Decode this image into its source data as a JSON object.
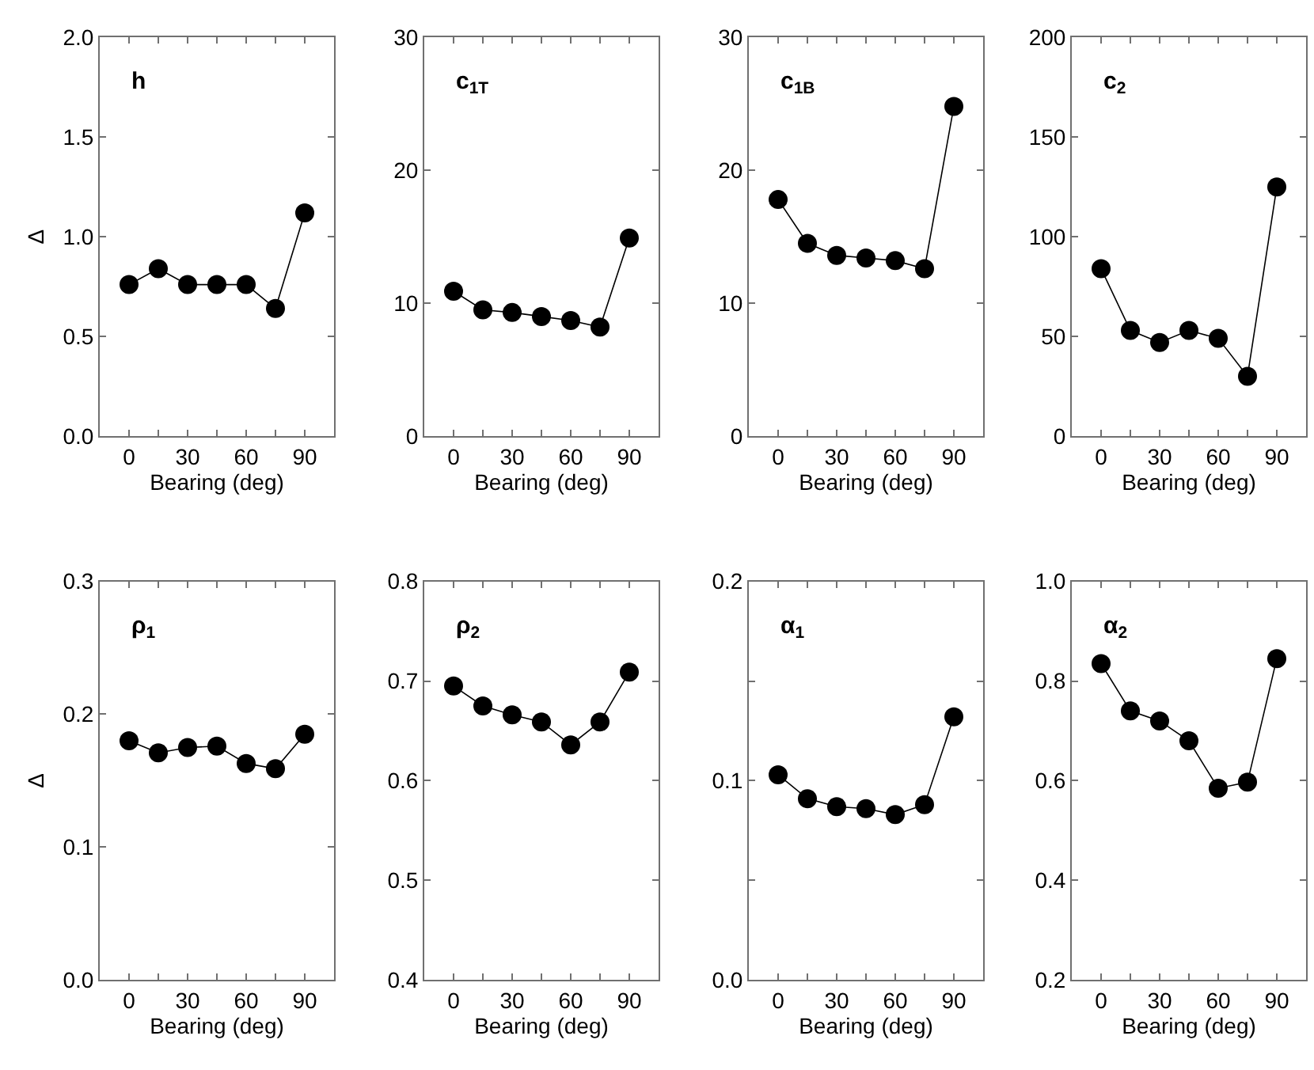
{
  "chart_data": [
    {
      "type": "line",
      "title": "h",
      "ylabel": "Δ",
      "xlabel": "Bearing (deg)",
      "x": [
        0,
        15,
        30,
        45,
        60,
        75,
        90
      ],
      "marker": "circle",
      "series": [
        {
          "color": "#000000",
          "values": [
            0.76,
            0.84,
            0.76,
            0.76,
            0.76,
            0.64,
            1.12
          ]
        }
      ],
      "xlim": [
        -15,
        105
      ],
      "xticks": [
        0,
        {
          "value": 15,
          "label": null
        },
        30,
        {
          "value": 45,
          "label": null
        },
        60,
        {
          "value": 75,
          "label": null
        },
        90
      ],
      "ylim": [
        0,
        2
      ],
      "yticks": [
        {
          "value": 0,
          "label": "0.0"
        },
        0.5,
        {
          "value": 1,
          "label": "1.0"
        },
        1.5,
        {
          "value": 2,
          "label": "2.0"
        }
      ]
    },
    {
      "type": "line",
      "title": "c$_{1T}$",
      "xlabel": "Bearing (deg)",
      "x": [
        0,
        15,
        30,
        45,
        60,
        75,
        90
      ],
      "marker": "circle",
      "series": [
        {
          "color": "#000000",
          "values": [
            10.9,
            9.5,
            9.3,
            9.0,
            8.7,
            8.2,
            14.9
          ]
        }
      ],
      "xlim": [
        -15,
        105
      ],
      "xticks": [
        0,
        {
          "value": 15,
          "label": null
        },
        30,
        {
          "value": 45,
          "label": null
        },
        60,
        {
          "value": 75,
          "label": null
        },
        90
      ],
      "ylim": [
        0,
        30
      ],
      "yticks": [
        0,
        10,
        20,
        30
      ]
    },
    {
      "type": "line",
      "title": "c$_{1B}$",
      "xlabel": "Bearing (deg)",
      "x": [
        0,
        15,
        30,
        45,
        60,
        75,
        90
      ],
      "marker": "circle",
      "series": [
        {
          "color": "#000000",
          "values": [
            17.8,
            14.5,
            13.6,
            13.4,
            13.2,
            12.6,
            24.8
          ]
        }
      ],
      "xlim": [
        -15,
        105
      ],
      "xticks": [
        0,
        {
          "value": 15,
          "label": null
        },
        30,
        {
          "value": 45,
          "label": null
        },
        60,
        {
          "value": 75,
          "label": null
        },
        90
      ],
      "ylim": [
        0,
        30
      ],
      "yticks": [
        0,
        10,
        20,
        30
      ]
    },
    {
      "type": "line",
      "title": "c$_{2}$",
      "xlabel": "Bearing (deg)",
      "x": [
        0,
        15,
        30,
        45,
        60,
        75,
        90
      ],
      "marker": "circle",
      "series": [
        {
          "color": "#000000",
          "values": [
            84,
            53,
            47,
            53,
            49,
            30,
            125
          ]
        }
      ],
      "xlim": [
        -15,
        105
      ],
      "xticks": [
        0,
        {
          "value": 15,
          "label": null
        },
        30,
        {
          "value": 45,
          "label": null
        },
        60,
        {
          "value": 75,
          "label": null
        },
        90
      ],
      "ylim": [
        0,
        200
      ],
      "yticks": [
        0,
        50,
        100,
        150,
        200
      ]
    },
    {
      "type": "line",
      "title": "ρ$_{1}$",
      "ylabel": "Δ",
      "xlabel": "Bearing (deg)",
      "x": [
        0,
        15,
        30,
        45,
        60,
        75,
        90
      ],
      "marker": "circle",
      "series": [
        {
          "color": "#000000",
          "values": [
            0.18,
            0.171,
            0.175,
            0.176,
            0.163,
            0.159,
            0.185
          ]
        }
      ],
      "xlim": [
        -15,
        105
      ],
      "xticks": [
        0,
        {
          "value": 15,
          "label": null
        },
        30,
        {
          "value": 45,
          "label": null
        },
        60,
        {
          "value": 75,
          "label": null
        },
        90
      ],
      "ylim": [
        0,
        0.3
      ],
      "yticks": [
        {
          "value": 0,
          "label": "0.0"
        },
        0.1,
        0.2,
        0.3
      ]
    },
    {
      "type": "line",
      "title": "ρ$_{2}$",
      "xlabel": "Bearing (deg)",
      "x": [
        0,
        15,
        30,
        45,
        60,
        75,
        90
      ],
      "marker": "circle",
      "series": [
        {
          "color": "#000000",
          "values": [
            0.695,
            0.675,
            0.666,
            0.659,
            0.636,
            0.659,
            0.709
          ]
        }
      ],
      "xlim": [
        -15,
        105
      ],
      "xticks": [
        0,
        {
          "value": 15,
          "label": null
        },
        30,
        {
          "value": 45,
          "label": null
        },
        60,
        {
          "value": 75,
          "label": null
        },
        90
      ],
      "ylim": [
        0.4,
        0.8
      ],
      "yticks": [
        0.4,
        0.5,
        0.6,
        0.7,
        0.8
      ]
    },
    {
      "type": "line",
      "title": "α$_{1}$",
      "xlabel": "Bearing (deg)",
      "x": [
        0,
        15,
        30,
        45,
        60,
        75,
        90
      ],
      "marker": "circle",
      "series": [
        {
          "color": "#000000",
          "values": [
            0.103,
            0.091,
            0.087,
            0.086,
            0.083,
            0.088,
            0.132
          ]
        }
      ],
      "xlim": [
        -15,
        105
      ],
      "xticks": [
        0,
        {
          "value": 15,
          "label": null
        },
        30,
        {
          "value": 45,
          "label": null
        },
        60,
        {
          "value": 75,
          "label": null
        },
        90
      ],
      "ylim": [
        0,
        0.2
      ],
      "yticks": [
        {
          "value": 0,
          "label": "0.0"
        },
        {
          "value": 0.05,
          "label": null
        },
        0.1,
        {
          "value": 0.15,
          "label": null
        },
        0.2
      ]
    },
    {
      "type": "line",
      "title": "α$_{2}$",
      "xlabel": "Bearing (deg)",
      "x": [
        0,
        15,
        30,
        45,
        60,
        75,
        90
      ],
      "marker": "circle",
      "series": [
        {
          "color": "#000000",
          "values": [
            0.835,
            0.74,
            0.72,
            0.68,
            0.585,
            0.597,
            0.845
          ]
        }
      ],
      "xlim": [
        -15,
        105
      ],
      "xticks": [
        0,
        {
          "value": 15,
          "label": null
        },
        30,
        {
          "value": 45,
          "label": null
        },
        60,
        {
          "value": 75,
          "label": null
        },
        90
      ],
      "ylim": [
        0.2,
        1.0
      ],
      "yticks": [
        0.2,
        0.4,
        0.6,
        0.8,
        {
          "value": 1,
          "label": "1.0"
        }
      ]
    }
  ]
}
